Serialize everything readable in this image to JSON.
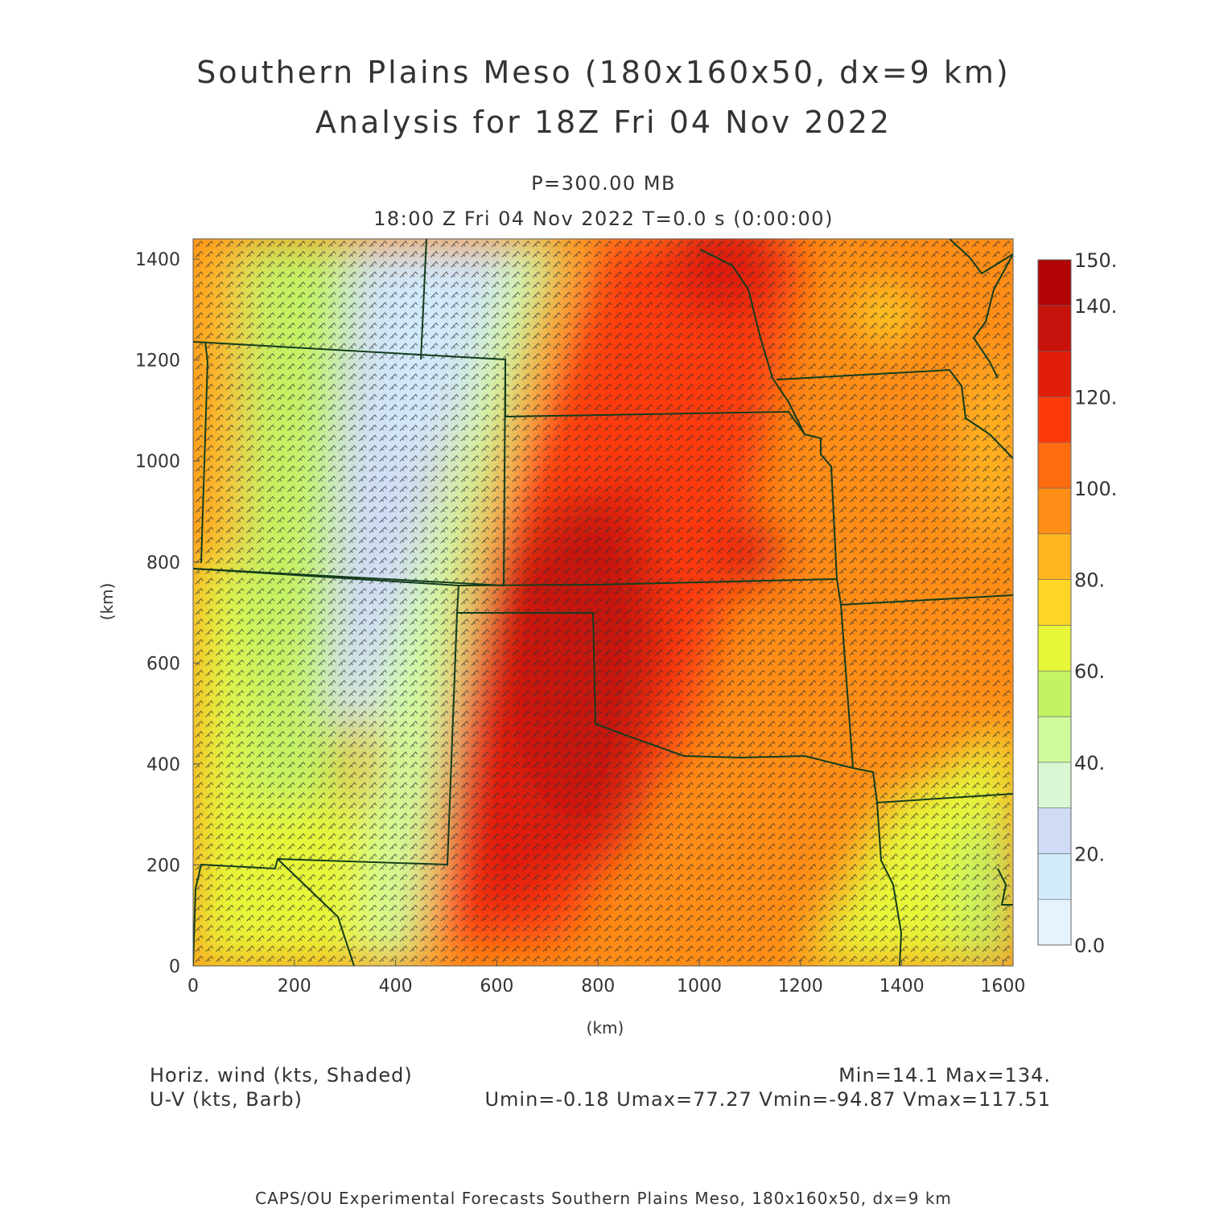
{
  "title_line1": "Southern Plains Meso (180x160x50, dx=9 km)",
  "title_line2": "Analysis for 18Z Fri 04 Nov 2022",
  "level_label": "P=300.00 MB",
  "time_label": "18:00 Z Fri 04 Nov 2022    T=0.0 s (0:00:00)",
  "x_axis_label": "(km)",
  "y_axis_label": "(km)",
  "x_ticks": [
    "0",
    "200",
    "400",
    "600",
    "800",
    "1000",
    "1200",
    "1400",
    "1600"
  ],
  "y_ticks": [
    "0",
    "200",
    "400",
    "600",
    "800",
    "1000",
    "1200",
    "1400"
  ],
  "x_range_km": [
    0,
    1620
  ],
  "y_range_km": [
    0,
    1440
  ],
  "colorbar": {
    "labels": [
      "0.0",
      "20.",
      "40.",
      "60.",
      "80.",
      "100.",
      "120.",
      "140.",
      "150."
    ],
    "colors": [
      "#e4f3fd",
      "#d2ecfb",
      "#d0dcf6",
      "#d8f7d2",
      "#d0fb9c",
      "#c4f264",
      "#e7f638",
      "#ffd626",
      "#ffb420",
      "#ff8d16",
      "#ff6c10",
      "#ff3a0a",
      "#e01e0a",
      "#c6120a",
      "#b20406"
    ]
  },
  "field_desc": "Horiz. wind (kts, Shaded)",
  "vector_desc": "U-V (kts, Barb)",
  "min_max": "Min=14.1 Max=134.",
  "uv_stats": "Umin=-0.18 Umax=77.27 Vmin=-94.87 Vmax=117.51",
  "footer": "CAPS/OU Experimental Forecasts  Southern Plains Meso, 180x160x50, dx=9 km"
}
